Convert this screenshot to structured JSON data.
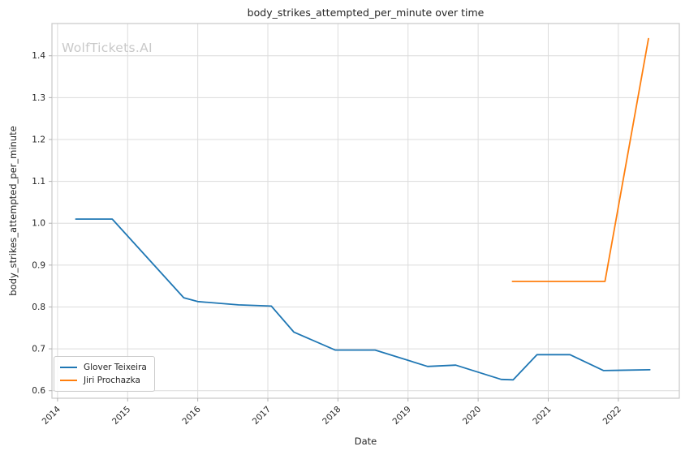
{
  "figure": {
    "title": "body_strikes_attempted_per_minute over time",
    "watermark": "WolfTickets.AI",
    "xlabel": "Date",
    "ylabel": "body_strikes_attempted_per_minute"
  },
  "colors": {
    "series_blue": "#1f77b4",
    "series_orange": "#ff7f0e",
    "grid": "#dcdcdc",
    "spine": "#c9c9c9",
    "tick": "#b0b0b0",
    "text": "#262626",
    "watermark": "#c9c9c9"
  },
  "chart_data": {
    "type": "line",
    "title": "body_strikes_attempted_per_minute over time",
    "xlabel": "Date",
    "ylabel": "body_strikes_attempted_per_minute",
    "grid": true,
    "legend_position": "lower-left",
    "x_ticks": [
      2014,
      2015,
      2016,
      2017,
      2018,
      2019,
      2020,
      2021,
      2022
    ],
    "y_ticks": [
      0.6,
      0.7,
      0.8,
      0.9,
      1.0,
      1.1,
      1.2,
      1.3,
      1.4
    ],
    "x_range": [
      2013.92,
      2022.87
    ],
    "y_range": [
      0.582,
      1.477
    ],
    "series": [
      {
        "name": "Glover Teixeira",
        "color": "#1f77b4",
        "x": [
          2014.26,
          2014.78,
          2015.8,
          2016.0,
          2016.58,
          2017.05,
          2017.37,
          2017.96,
          2018.53,
          2019.28,
          2019.68,
          2020.33,
          2020.5,
          2020.84,
          2021.31,
          2021.79,
          2022.45
        ],
        "y": [
          1.01,
          1.01,
          0.822,
          0.813,
          0.805,
          0.802,
          0.74,
          0.697,
          0.697,
          0.658,
          0.661,
          0.627,
          0.626,
          0.686,
          0.686,
          0.648,
          0.65
        ]
      },
      {
        "name": "Jiri Prochazka",
        "color": "#ff7f0e",
        "x": [
          2020.49,
          2021.81,
          2022.43
        ],
        "y": [
          0.861,
          0.861,
          1.441
        ]
      }
    ]
  }
}
